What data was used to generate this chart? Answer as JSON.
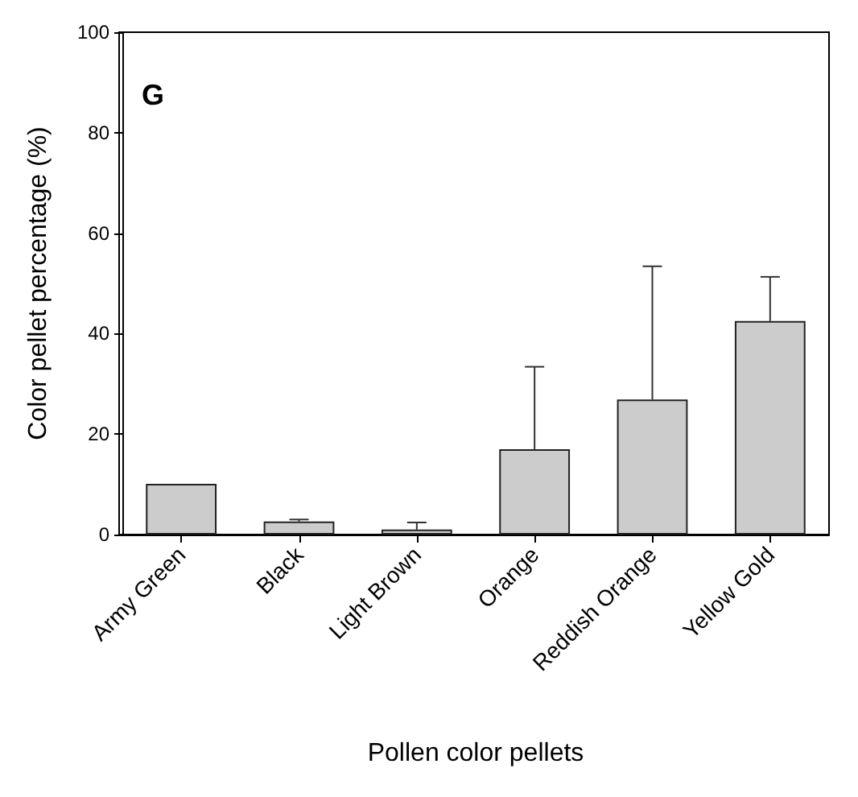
{
  "chart_data": {
    "type": "bar",
    "categories": [
      "Army Green",
      "Black",
      "Light Brown",
      "Orange",
      "Reddish Orange",
      "Yellow Gold"
    ],
    "values": [
      10.1,
      2.6,
      1.0,
      17.0,
      26.9,
      42.5
    ],
    "errors": [
      null,
      [
        2.6,
        3.0
      ],
      [
        1.0,
        2.4
      ],
      [
        17.0,
        33.4
      ],
      [
        26.9,
        53.4
      ],
      [
        42.5,
        51.3
      ]
    ],
    "color": "#cccccc",
    "xlabel": "Pollen color pellets",
    "ylabel": "Color pellet percentage (%)",
    "ylim": [
      0,
      100
    ],
    "yticks": [
      0,
      20,
      40,
      60,
      80,
      100
    ],
    "annotations": [
      "G"
    ],
    "grid": false
  }
}
